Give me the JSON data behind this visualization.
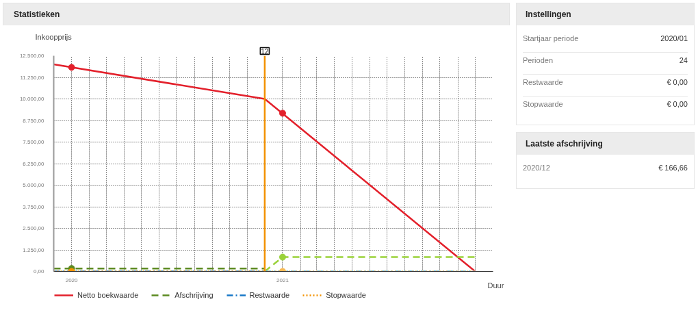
{
  "chart_data": [
    {
      "type": "line",
      "title": "Statistieken",
      "ylabel": "Inkoopprijs",
      "xlabel": "Duur",
      "xlim": [
        "2019-12",
        "2022-01"
      ],
      "xticks": [
        {
          "value": "2020-01",
          "label": "2020"
        },
        {
          "value": "2020-02",
          "label": null
        },
        {
          "value": "2020-03",
          "label": null
        },
        {
          "value": "2020-04",
          "label": null
        },
        {
          "value": "2020-05",
          "label": null
        },
        {
          "value": "2020-06",
          "label": null
        },
        {
          "value": "2020-07",
          "label": null
        },
        {
          "value": "2020-08",
          "label": null
        },
        {
          "value": "2020-09",
          "label": null
        },
        {
          "value": "2020-10",
          "label": null
        },
        {
          "value": "2020-11",
          "label": null
        },
        {
          "value": "2020-12",
          "label": null
        },
        {
          "value": "2021-01",
          "label": "2021"
        },
        {
          "value": "2021-02",
          "label": null
        },
        {
          "value": "2021-03",
          "label": null
        },
        {
          "value": "2021-04",
          "label": null
        },
        {
          "value": "2021-05",
          "label": null
        },
        {
          "value": "2021-06",
          "label": null
        },
        {
          "value": "2021-07",
          "label": null
        },
        {
          "value": "2021-08",
          "label": null
        },
        {
          "value": "2021-09",
          "label": null
        },
        {
          "value": "2021-10",
          "label": null
        },
        {
          "value": "2021-11",
          "label": null
        },
        {
          "value": "2021-12",
          "label": null
        }
      ],
      "ylim": [
        0,
        12500
      ],
      "yticks": [
        {
          "value": 0,
          "label": "0,00"
        },
        {
          "value": 1250,
          "label": "1.250,00"
        },
        {
          "value": 2500,
          "label": "2.500,00"
        },
        {
          "value": 3750,
          "label": "3.750,00"
        },
        {
          "value": 5000,
          "label": "5.000,00"
        },
        {
          "value": 6250,
          "label": "6.250,00"
        },
        {
          "value": 7500,
          "label": "7.500,00"
        },
        {
          "value": 8750,
          "label": "8.750,00"
        },
        {
          "value": 10000,
          "label": "10.000,00"
        },
        {
          "value": 11250,
          "label": "11.250,00"
        },
        {
          "value": 12500,
          "label": "12.500,00"
        }
      ],
      "grid": true,
      "legend": "bottom",
      "ref_lines": [
        {
          "axis": "x",
          "value": "2020-12",
          "label": "12",
          "color": "#f29100"
        }
      ],
      "series": [
        {
          "name": "Netto boekwaarde",
          "type": "line",
          "color": "#e3202b",
          "line_style": "solid",
          "x": [
            "2019-12",
            "2020-12",
            "2021-12"
          ],
          "values": [
            12000,
            10000,
            0
          ]
        },
        {
          "name": "Afschrijving",
          "type": "line",
          "color": "#5c8a21",
          "line_style": "dashed",
          "x": [
            "2019-12",
            "2020-12"
          ],
          "values": [
            170,
            170
          ]
        },
        {
          "type": "line",
          "color": "#9ad23a",
          "line_style": "dashed",
          "x": [
            "2020-12",
            "2021-01",
            "2021-12"
          ],
          "values": [
            0,
            830,
            830
          ]
        },
        {
          "name": "Restwaarde",
          "type": "line",
          "color": "#1878c8",
          "line_style": "dashdot",
          "x": [
            "2019-12",
            "2020-12"
          ],
          "values": [
            0,
            0
          ]
        },
        {
          "type": "line",
          "color": "#4cb3ea",
          "line_style": "dashdot",
          "x": [
            "2020-12",
            "2021-12"
          ],
          "values": [
            0,
            0
          ]
        },
        {
          "name": "Stopwaarde",
          "type": "line",
          "color": "#f39200",
          "line_style": "dotted",
          "x": [
            "2019-12",
            "2020-12"
          ],
          "values": [
            0,
            0
          ]
        },
        {
          "type": "line",
          "color": "#f7b955",
          "line_style": "dotted",
          "x": [
            "2020-12",
            "2021-12"
          ],
          "values": [
            0,
            0
          ]
        },
        {
          "type": "scatter",
          "marker": "circle",
          "x": [
            "2020-01",
            "2021-01",
            "2020-01",
            "2021-01",
            "2020-01",
            "2021-01"
          ],
          "values": [
            11830,
            9170,
            170,
            830,
            0,
            0
          ],
          "colors": [
            "#e3202b",
            "#e3202b",
            "#5c8a21",
            "#9ad23a",
            "#f39200",
            "#f7b955"
          ]
        }
      ]
    },
    {
      "type": "other",
      "title": "Instellingen",
      "annotations": [
        "Startjaar periode",
        "2020/01",
        "Perioden",
        "24",
        "Restwaarde",
        "€ 0,00",
        "Stopwaarde",
        "€ 0,00"
      ]
    },
    {
      "type": "other",
      "title": "Laatste afschrijving",
      "annotations": [
        "2020/12",
        "€ 166,66"
      ]
    }
  ]
}
